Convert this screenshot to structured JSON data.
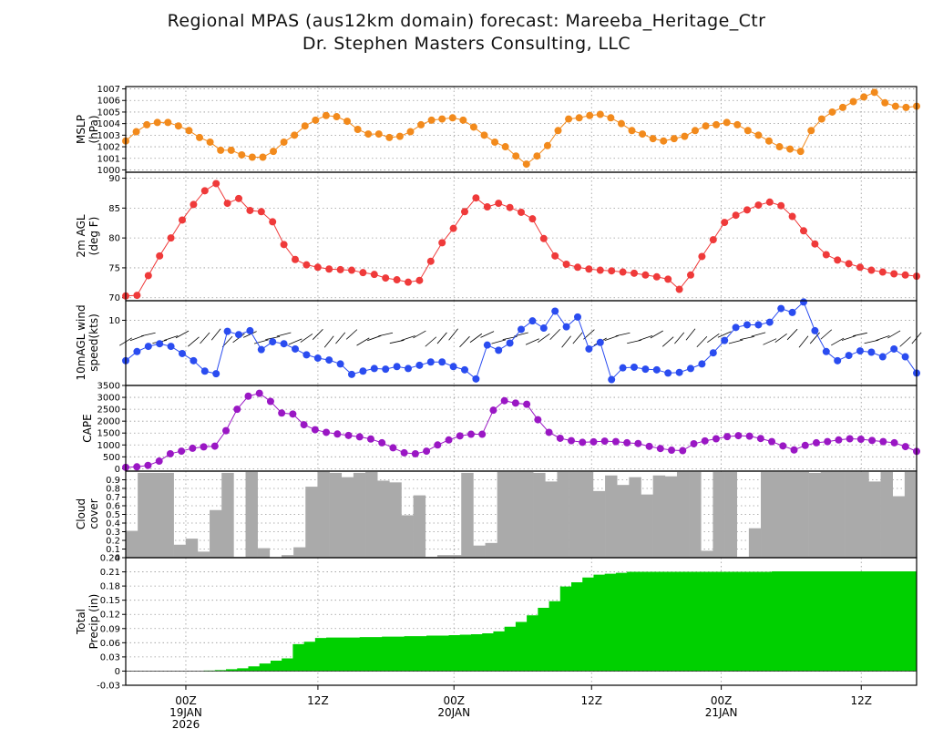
{
  "title": "Regional MPAS (aus12km domain) forecast: Mareeba_Heritage_Ctr",
  "subtitle": "Dr. Stephen Masters Consulting, LLC",
  "colors": {
    "mslp": "#f28a1c",
    "temp": "#ef3a3a",
    "wind": "#2a4cf0",
    "cape": "#9a17c4",
    "cloud": "#aaaaaa",
    "precip": "#00d000"
  },
  "chart_data": [
    {
      "type": "line",
      "ylabel": [
        "MSLP",
        "(hPa)"
      ],
      "ylim": [
        999.8,
        1007.2
      ],
      "yticks": [
        "1000",
        "1001",
        "1002",
        "1003",
        "1004",
        "1005",
        "1006",
        "1007"
      ],
      "grid": true,
      "values": [
        1002.5,
        1003.3,
        1003.9,
        1004.1,
        1004.1,
        1003.8,
        1003.4,
        1002.8,
        1002.4,
        1001.7,
        1001.7,
        1001.3,
        1001.1,
        1001.1,
        1001.6,
        1002.4,
        1003.0,
        1003.8,
        1004.3,
        1004.7,
        1004.6,
        1004.2,
        1003.5,
        1003.1,
        1003.1,
        1002.8,
        1002.9,
        1003.3,
        1003.9,
        1004.3,
        1004.4,
        1004.5,
        1004.3,
        1003.7,
        1003.0,
        1002.4,
        1002.0,
        1001.2,
        1000.5,
        1001.2,
        1002.1,
        1003.4,
        1004.4,
        1004.5,
        1004.7,
        1004.8,
        1004.5,
        1004.0,
        1003.4,
        1003.1,
        1002.7,
        1002.5,
        1002.7,
        1002.9,
        1003.4,
        1003.8,
        1003.9,
        1004.1,
        1003.9,
        1003.4,
        1003.0,
        1002.5,
        1002.0,
        1001.8,
        1001.6,
        1003.4,
        1004.4,
        1005.0,
        1005.4,
        1005.9,
        1006.3,
        1006.7,
        1005.8,
        1005.5,
        1005.4,
        1005.5
      ]
    },
    {
      "type": "line",
      "ylabel": [
        "2m AGL",
        "(deg F)"
      ],
      "ylim": [
        69.5,
        91
      ],
      "yticks": [
        "70",
        "75",
        "80",
        "85",
        "90"
      ],
      "grid": true,
      "values": [
        70.3,
        70.4,
        73.7,
        77.0,
        80.0,
        83.0,
        85.6,
        87.9,
        89.1,
        85.8,
        86.6,
        84.6,
        84.4,
        82.7,
        78.9,
        76.4,
        75.5,
        75.1,
        74.8,
        74.7,
        74.6,
        74.2,
        73.9,
        73.3,
        73.0,
        72.6,
        72.9,
        76.1,
        79.2,
        81.6,
        84.4,
        86.7,
        85.2,
        85.8,
        85.1,
        84.3,
        83.2,
        79.9,
        77.0,
        75.6,
        75.1,
        74.8,
        74.6,
        74.5,
        74.3,
        74.1,
        73.8,
        73.5,
        73.1,
        71.4,
        73.8,
        76.9,
        79.7,
        82.6,
        83.8,
        84.7,
        85.5,
        86.0,
        85.4,
        83.6,
        81.2,
        79.0,
        77.2,
        76.3,
        75.7,
        75.1,
        74.6,
        74.3,
        74.0,
        73.8,
        73.6
      ]
    },
    {
      "type": "line",
      "ylabel": [
        "10mAGL wind",
        "speed(kts)"
      ],
      "ylim": [
        0,
        13
      ],
      "yticks": [
        "10"
      ],
      "grid": true,
      "barbs": true,
      "values": [
        3.8,
        5.2,
        6.0,
        6.4,
        6.0,
        4.9,
        3.8,
        2.2,
        1.8,
        8.3,
        7.8,
        8.4,
        5.5,
        6.7,
        6.4,
        5.6,
        4.7,
        4.2,
        3.9,
        3.3,
        1.7,
        2.2,
        2.6,
        2.5,
        2.9,
        2.6,
        3.1,
        3.6,
        3.6,
        2.9,
        2.4,
        1.0,
        6.2,
        5.4,
        6.5,
        8.6,
        9.9,
        8.8,
        11.4,
        9.0,
        10.5,
        5.6,
        6.6,
        0.9,
        2.7,
        2.8,
        2.5,
        2.4,
        1.9,
        2.0,
        2.6,
        3.3,
        5.0,
        6.9,
        8.9,
        9.3,
        9.3,
        9.7,
        11.8,
        11.2,
        12.8,
        8.4,
        5.2,
        3.8,
        4.6,
        5.3,
        5.1,
        4.4,
        5.6,
        4.4,
        1.9
      ]
    },
    {
      "type": "line",
      "ylabel": [
        "CAPE"
      ],
      "ylim": [
        -100,
        3500
      ],
      "yticks": [
        "0",
        "500",
        "1000",
        "1500",
        "2000",
        "2500",
        "3000",
        "3500"
      ],
      "grid": true,
      "values": [
        60,
        80,
        140,
        320,
        630,
        740,
        860,
        920,
        950,
        1600,
        2500,
        3050,
        3170,
        2830,
        2340,
        2300,
        1850,
        1640,
        1530,
        1460,
        1400,
        1340,
        1250,
        1090,
        880,
        670,
        630,
        740,
        1000,
        1210,
        1380,
        1450,
        1450,
        2460,
        2860,
        2760,
        2710,
        2060,
        1530,
        1280,
        1180,
        1110,
        1130,
        1160,
        1140,
        1090,
        1060,
        940,
        850,
        780,
        760,
        1050,
        1170,
        1260,
        1350,
        1390,
        1370,
        1270,
        1140,
        960,
        790,
        980,
        1090,
        1140,
        1210,
        1260,
        1240,
        1190,
        1140,
        1090,
        930,
        730
      ]
    },
    {
      "type": "bar",
      "ylabel": [
        "Cloud",
        "cover"
      ],
      "ylim": [
        0,
        1
      ],
      "yticks": [
        "0",
        "0.1",
        "0.2",
        "0.3",
        "0.4",
        "0.5",
        "0.6",
        "0.7",
        "0.8",
        "0.9"
      ],
      "grid": true,
      "values": [
        0.31,
        0.98,
        0.98,
        0.98,
        0.15,
        0.22,
        0.07,
        0.55,
        0.98,
        0.01,
        0.99,
        0.11,
        0.0,
        0.03,
        0.12,
        0.82,
        0.99,
        0.98,
        0.93,
        0.98,
        0.99,
        0.89,
        0.87,
        0.49,
        0.72,
        0.01,
        0.03,
        0.03,
        0.98,
        0.14,
        0.17,
        0.99,
        0.99,
        0.99,
        0.98,
        0.88,
        0.99,
        0.99,
        0.99,
        0.77,
        0.95,
        0.84,
        0.93,
        0.73,
        0.95,
        0.94,
        0.99,
        0.99,
        0.08,
        0.99,
        0.99,
        0.01,
        0.34,
        0.99,
        0.99,
        0.99,
        0.99,
        0.98,
        0.99,
        0.99,
        0.99,
        0.99,
        0.88,
        0.99,
        0.71,
        0.99
      ]
    },
    {
      "type": "area",
      "ylabel": [
        "Total",
        "Precip (in)"
      ],
      "ylim": [
        -0.03,
        0.24
      ],
      "yticks": [
        "-0.03",
        "0",
        "0.03",
        "0.06",
        "0.09",
        "0.12",
        "0.15",
        "0.18",
        "0.21",
        "0.24"
      ],
      "grid": true,
      "values": [
        0,
        0,
        0,
        0,
        0,
        0,
        0,
        0.001,
        0.002,
        0.004,
        0.006,
        0.01,
        0.016,
        0.022,
        0.027,
        0.057,
        0.062,
        0.07,
        0.071,
        0.071,
        0.071,
        0.072,
        0.072,
        0.073,
        0.073,
        0.074,
        0.074,
        0.075,
        0.075,
        0.076,
        0.077,
        0.078,
        0.08,
        0.084,
        0.094,
        0.104,
        0.118,
        0.134,
        0.148,
        0.179,
        0.188,
        0.198,
        0.204,
        0.206,
        0.208,
        0.21,
        0.21,
        0.21,
        0.21,
        0.21,
        0.21,
        0.21,
        0.21,
        0.21,
        0.21,
        0.21,
        0.21,
        0.21,
        0.211,
        0.211,
        0.211,
        0.211,
        0.211,
        0.211,
        0.211,
        0.211,
        0.211,
        0.211,
        0.211,
        0.211,
        0.211
      ]
    }
  ],
  "xaxis": {
    "labels": [
      {
        "frac": 0.076,
        "lines": [
          "00Z",
          "19JAN",
          "2026"
        ]
      },
      {
        "frac": 0.243,
        "lines": [
          "12Z"
        ]
      },
      {
        "frac": 0.415,
        "lines": [
          "00Z",
          "20JAN"
        ]
      },
      {
        "frac": 0.589,
        "lines": [
          "12Z"
        ]
      },
      {
        "frac": 0.753,
        "lines": [
          "00Z",
          "21JAN"
        ]
      },
      {
        "frac": 0.93,
        "lines": [
          "12Z"
        ]
      }
    ]
  }
}
